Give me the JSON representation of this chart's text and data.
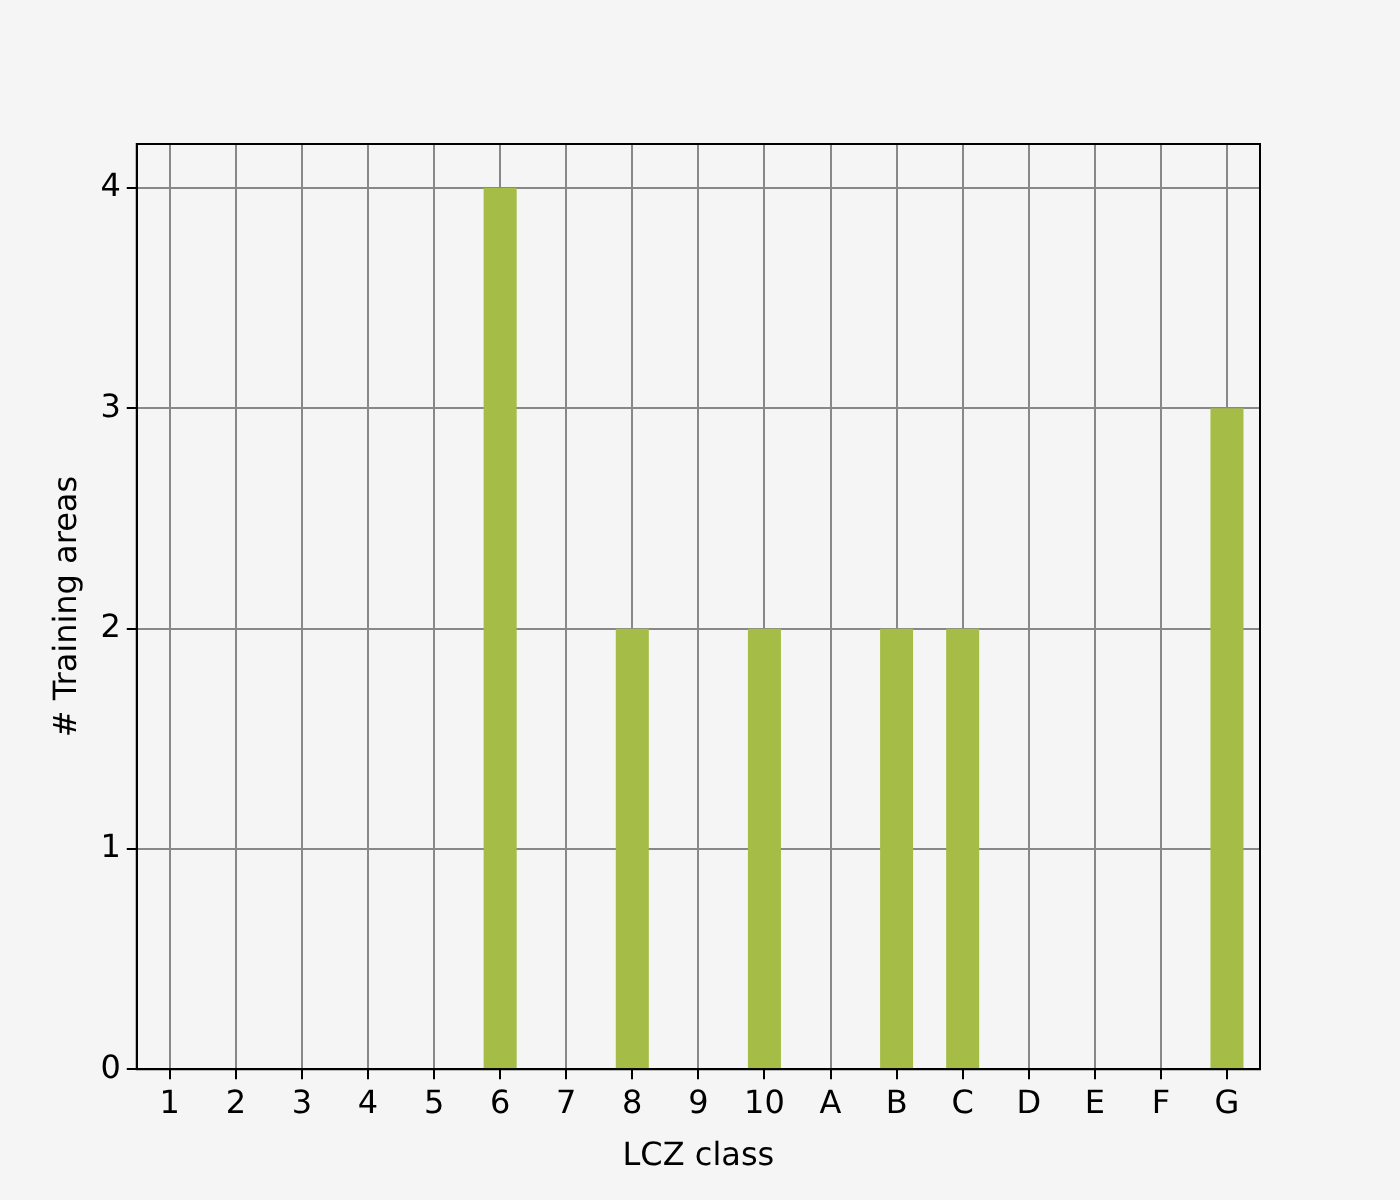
{
  "chart_data": {
    "type": "bar",
    "xlabel": "LCZ class",
    "ylabel": "# Training areas",
    "categories": [
      "1",
      "2",
      "3",
      "4",
      "5",
      "6",
      "7",
      "8",
      "9",
      "10",
      "A",
      "B",
      "C",
      "D",
      "E",
      "F",
      "G"
    ],
    "values": [
      0,
      0,
      0,
      0,
      0,
      4,
      0,
      2,
      0,
      2,
      0,
      2,
      2,
      0,
      0,
      0,
      3
    ],
    "color": "#a5bd46",
    "ylim": [
      0,
      4.2
    ],
    "yticks": [
      0,
      1,
      2,
      3,
      4
    ],
    "grid": true,
    "legend": false
  }
}
